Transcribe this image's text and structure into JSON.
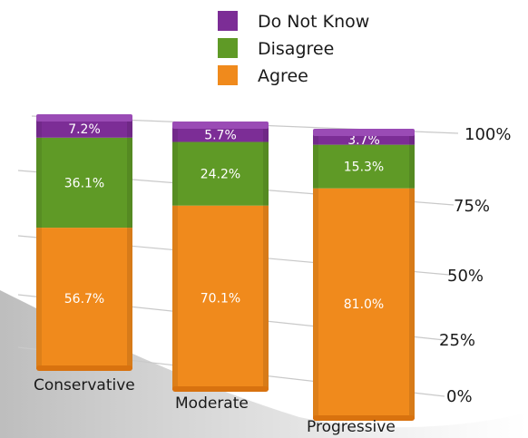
{
  "chart_data": {
    "type": "bar",
    "stacked": true,
    "categories": [
      "Conservative",
      "Moderate",
      "Progressive"
    ],
    "series": [
      {
        "name": "Agree",
        "values": [
          56.7,
          70.1,
          81.0
        ],
        "labels": [
          "56.7%",
          "70.1%",
          "81.0%"
        ]
      },
      {
        "name": "Disagree",
        "values": [
          36.1,
          24.2,
          15.3
        ],
        "labels": [
          "36.1%",
          "24.2%",
          "15.3%"
        ]
      },
      {
        "name": "Do Not Know",
        "values": [
          7.2,
          5.7,
          3.7
        ],
        "labels": [
          "7.2%",
          "5.7%",
          "3.7%"
        ]
      }
    ],
    "legend_order": [
      "Do Not Know",
      "Disagree",
      "Agree"
    ],
    "yticks": [
      "0%",
      "25%",
      "50%",
      "75%",
      "100%"
    ],
    "ylim": [
      0,
      100
    ],
    "legend_position": "top",
    "grid": true,
    "colors": {
      "Agree": "#f08a1c",
      "Disagree": "#5f9a26",
      "Do Not Know": "#7c2d96"
    }
  }
}
